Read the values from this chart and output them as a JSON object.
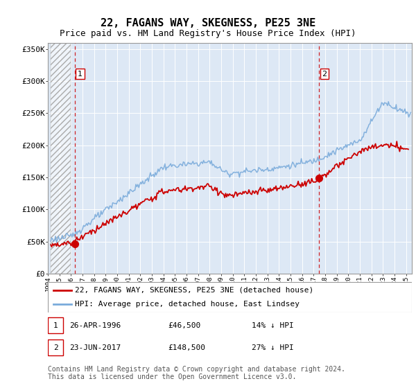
{
  "title": "22, FAGANS WAY, SKEGNESS, PE25 3NE",
  "subtitle": "Price paid vs. HM Land Registry's House Price Index (HPI)",
  "ylabel_ticks": [
    "£0",
    "£50K",
    "£100K",
    "£150K",
    "£200K",
    "£250K",
    "£300K",
    "£350K"
  ],
  "ytick_values": [
    0,
    50000,
    100000,
    150000,
    200000,
    250000,
    300000,
    350000
  ],
  "ylim": [
    0,
    360000
  ],
  "xlim_start": 1994.25,
  "xlim_end": 2025.5,
  "hatch_end": 1996.0,
  "transactions": [
    {
      "date_str": "26-APR-1996",
      "date_x": 1996.32,
      "price": 46500,
      "label": "1"
    },
    {
      "date_str": "23-JUN-2017",
      "date_x": 2017.48,
      "price": 148500,
      "label": "2"
    }
  ],
  "legend_line1": "22, FAGANS WAY, SKEGNESS, PE25 3NE (detached house)",
  "legend_line2": "HPI: Average price, detached house, East Lindsey",
  "footer": "Contains HM Land Registry data © Crown copyright and database right 2024.\nThis data is licensed under the Open Government Licence v3.0.",
  "line_red_color": "#cc0000",
  "line_blue_color": "#7aabdb",
  "background_plot": "#dde8f5",
  "grid_color": "#ffffff",
  "hatch_color": "#c8c8c8",
  "title_fontsize": 11,
  "subtitle_fontsize": 9,
  "tick_fontsize": 8,
  "legend_fontsize": 8,
  "footer_fontsize": 7
}
